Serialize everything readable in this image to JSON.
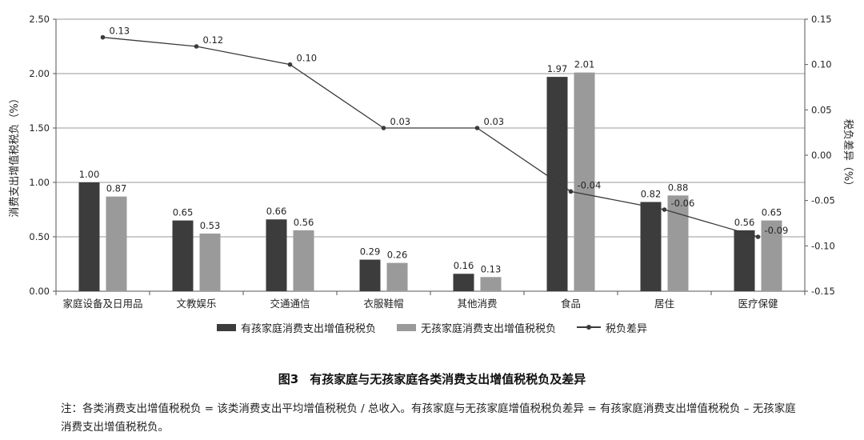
{
  "chart_data": {
    "type": "bar",
    "categories": [
      "家庭设备及日用品",
      "文教娱乐",
      "交通通信",
      "衣服鞋帽",
      "其他消费",
      "食品",
      "居住",
      "医疗保健"
    ],
    "series": [
      {
        "name": "有孩家庭消费支出增值税税负",
        "kind": "bar",
        "axis": "left",
        "color": "#3c3c3c",
        "values": [
          1.0,
          0.65,
          0.66,
          0.29,
          0.16,
          1.97,
          0.82,
          0.56
        ],
        "labels": [
          "1.00",
          "0.65",
          "0.66",
          "0.29",
          "0.16",
          "1.97",
          "0.82",
          "0.56"
        ]
      },
      {
        "name": "无孩家庭消费支出增值税税负",
        "kind": "bar",
        "axis": "left",
        "color": "#9a9a9a",
        "values": [
          0.87,
          0.53,
          0.56,
          0.26,
          0.13,
          2.01,
          0.88,
          0.65
        ],
        "labels": [
          "0.87",
          "0.53",
          "0.56",
          "0.26",
          "0.13",
          "2.01",
          "0.88",
          "0.65"
        ]
      },
      {
        "name": "税负差异",
        "kind": "line",
        "axis": "right",
        "color": "#3a3a3a",
        "values": [
          0.13,
          0.12,
          0.1,
          0.03,
          0.03,
          -0.04,
          -0.06,
          -0.09
        ],
        "labels": [
          "0.13",
          "0.12",
          "0.10",
          "0.03",
          "0.03",
          "-0.04",
          "-0.06",
          "-0.09"
        ]
      }
    ],
    "ylabel": "消费支出增值税税负（%）",
    "y2label": "税负差异（%）",
    "ylim": [
      0,
      2.5
    ],
    "y2lim": [
      -0.15,
      0.15
    ],
    "yticks": [
      "0.00",
      "0.50",
      "1.00",
      "1.50",
      "2.00",
      "2.50"
    ],
    "y2ticks": [
      "-0.15",
      "-0.10",
      "-0.05",
      "0.00",
      "0.05",
      "0.10",
      "0.15"
    ],
    "grid": true,
    "legend_position": "bottom"
  },
  "legend": {
    "item1": "有孩家庭消费支出增值税税负",
    "item2": "无孩家庭消费支出增值税税负",
    "item3": "税负差异"
  },
  "caption": {
    "number": "图3",
    "title": "有孩家庭与无孩家庭各类消费支出增值税税负及差异"
  },
  "note": "注：各类消费支出增值税税负 = 该类消费支出平均增值税税负 / 总收入。有孩家庭与无孩家庭增值税税负差异 = 有孩家庭消费支出增值税税负 – 无孩家庭消费支出增值税税负。",
  "colors": {
    "bar_with_child": "#3c3c3c",
    "bar_without_child": "#9a9a9a",
    "line": "#3a3a3a",
    "grid": "#9a9a9a"
  }
}
